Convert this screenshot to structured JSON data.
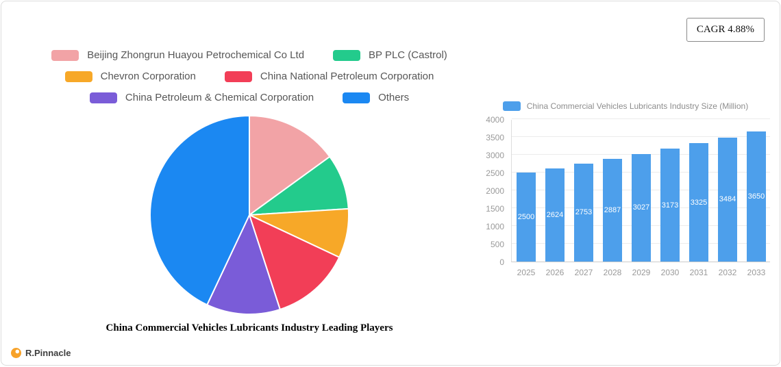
{
  "badge": {
    "label": "CAGR 4.88%"
  },
  "logo": {
    "text": "R.Pinnacle",
    "dot_color": "#F7A229"
  },
  "chart_data": [
    {
      "type": "pie",
      "title": "China Commercial Vehicles Lubricants Industry Leading Players",
      "legend_position": "top",
      "labels": [
        "Beijing Zhongrun Huayou Petrochemical Co  Ltd",
        "BP PLC (Castrol)",
        "Chevron Corporation",
        "China National Petroleum Corporation",
        "China Petroleum & Chemical Corporation",
        "Others"
      ],
      "values": [
        15,
        9,
        8,
        13,
        12,
        43
      ],
      "value_unit": "% share (estimated from slice angles)",
      "colors": [
        "#F2A3A6",
        "#23CB8C",
        "#F7A828",
        "#F23E57",
        "#7A5CD8",
        "#1B88F2"
      ],
      "start_angle_deg": 0,
      "direction": "clockwise"
    },
    {
      "type": "bar",
      "legend": "China Commercial Vehicles Lubricants Industry Size (Million)",
      "categories": [
        "2025",
        "2026",
        "2027",
        "2028",
        "2029",
        "2030",
        "2031",
        "2032",
        "2033"
      ],
      "values": [
        2500,
        2624,
        2753,
        2887,
        3027,
        3173,
        3325,
        3484,
        3650
      ],
      "ylim": [
        0,
        4000
      ],
      "y_ticks": [
        0,
        500,
        1000,
        1500,
        2000,
        2500,
        3000,
        3500,
        4000
      ],
      "bar_color": "#4D9FEB",
      "grid": true,
      "value_labels": "inside bars, white"
    }
  ]
}
